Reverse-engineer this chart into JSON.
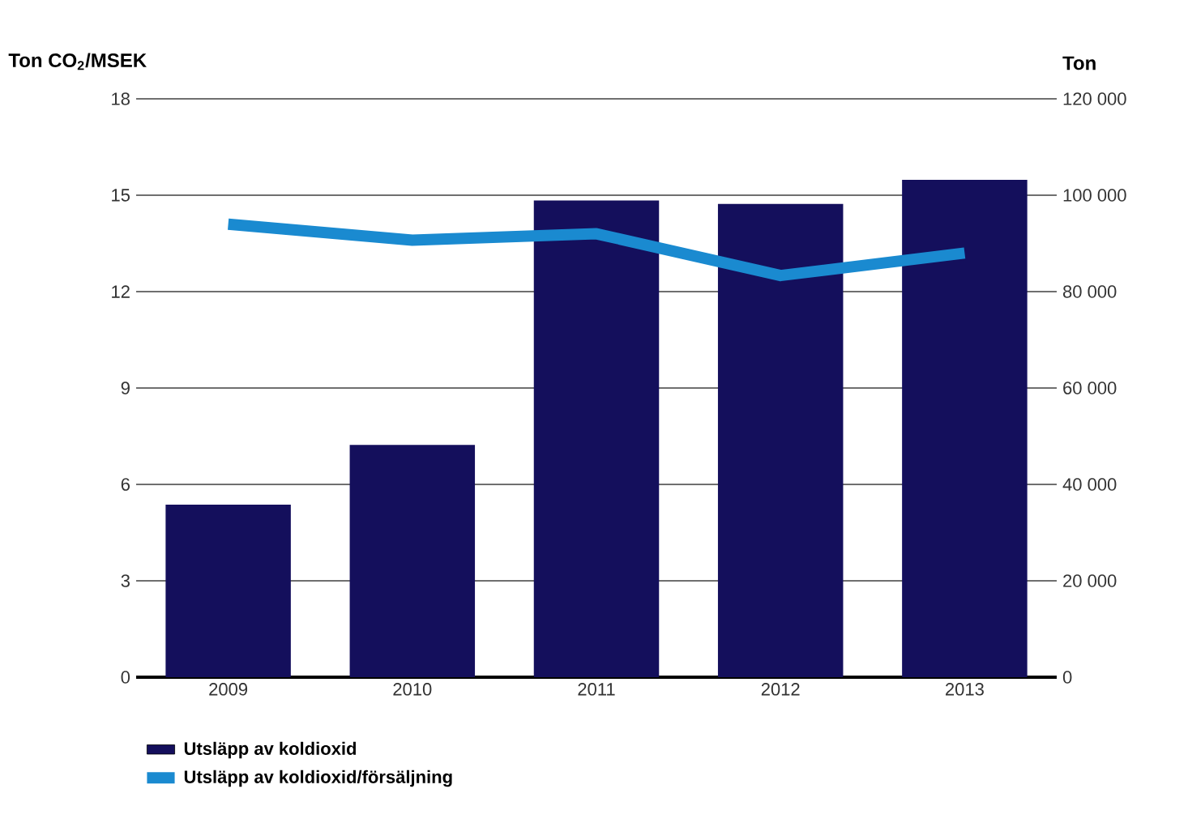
{
  "chart_data": {
    "type": "bar",
    "ylabel": "Ton CO$_{2}$/MSEK",
    "y2label": "Ton",
    "categories": [
      "2009",
      "2010",
      "2011",
      "2012",
      "2013"
    ],
    "series": [
      {
        "name": "Utsläpp av koldioxid",
        "axis": "y2",
        "color": "#140f5c",
        "values": [
          35800,
          48200,
          98900,
          98200,
          103200
        ]
      },
      {
        "name": "Utsläpp av koldioxid/försäljning",
        "type": "line",
        "axis": "y",
        "color": "#1a8ad0",
        "values": [
          14.1,
          13.6,
          13.8,
          12.5,
          13.2
        ]
      }
    ],
    "ylim": [
      0,
      18
    ],
    "yticks": [
      0,
      3,
      6,
      9,
      12,
      15,
      18
    ],
    "y2lim": [
      0,
      120000
    ],
    "y2ticks": [
      0,
      {
        "value": 20000,
        "label": "20 000"
      },
      {
        "value": 40000,
        "label": "40 000"
      },
      {
        "value": 60000,
        "label": "60 000"
      },
      {
        "value": 80000,
        "label": "80 000"
      },
      {
        "value": 100000,
        "label": "100 000"
      },
      {
        "value": 120000,
        "label": "120 000"
      }
    ],
    "grid": "y",
    "legend": "bottom left",
    "marker": "none",
    "line_style": "solid"
  }
}
